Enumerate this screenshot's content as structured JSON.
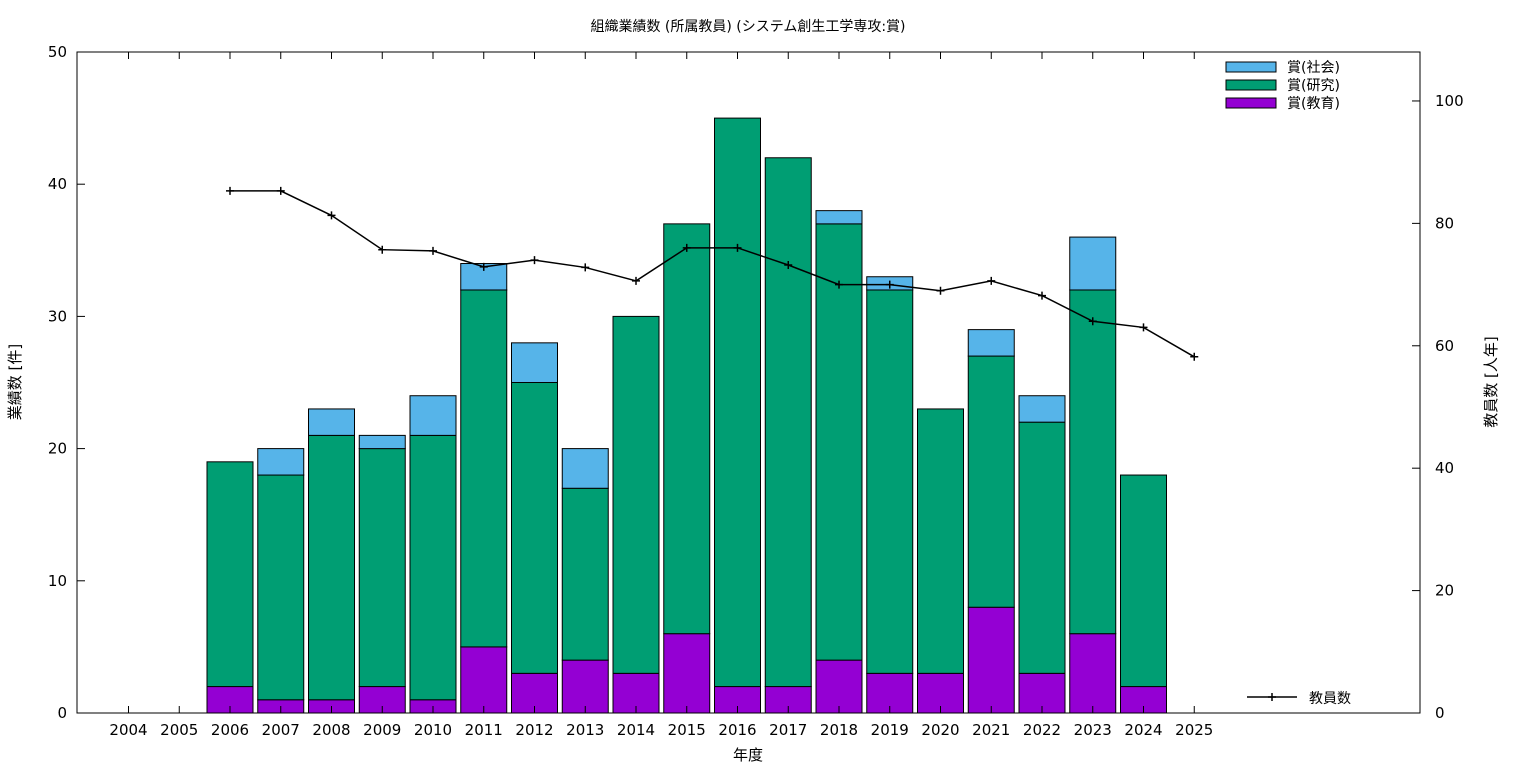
{
  "chart_data": {
    "type": "bar",
    "stacked": true,
    "title": "組織業績数 (所属教員) (システム創生工学専攻:賞)",
    "xlabel": "年度",
    "ylabel": "業績数 [件]",
    "y2label": "教員数 [人年]",
    "ylim": [
      0,
      50
    ],
    "y2lim": [
      0,
      108
    ],
    "yticks": [
      0,
      10,
      20,
      30,
      40,
      50
    ],
    "y2ticks": [
      0,
      20,
      40,
      60,
      80,
      100
    ],
    "grid": false,
    "legend_position": "top-right",
    "categories": [
      "2004",
      "2005",
      "2006",
      "2007",
      "2008",
      "2009",
      "2010",
      "2011",
      "2012",
      "2013",
      "2014",
      "2015",
      "2016",
      "2017",
      "2018",
      "2019",
      "2020",
      "2021",
      "2022",
      "2023",
      "2024",
      "2025"
    ],
    "series": [
      {
        "name": "賞(教育)",
        "color": "#9400d3",
        "values": [
          0,
          0,
          2,
          1,
          1,
          2,
          1,
          5,
          3,
          4,
          3,
          6,
          2,
          2,
          4,
          3,
          3,
          8,
          3,
          6,
          2,
          0
        ]
      },
      {
        "name": "賞(研究)",
        "color": "#009e73",
        "values": [
          0,
          0,
          17,
          17,
          20,
          18,
          20,
          27,
          22,
          13,
          27,
          31,
          43,
          40,
          33,
          29,
          20,
          19,
          19,
          26,
          16,
          0
        ]
      },
      {
        "name": "賞(社会)",
        "color": "#56b4e9",
        "values": [
          0,
          0,
          0,
          2,
          2,
          1,
          3,
          2,
          3,
          3,
          0,
          0,
          0,
          0,
          1,
          1,
          0,
          2,
          2,
          4,
          0,
          0
        ]
      }
    ],
    "line_series": {
      "name": "教員数",
      "axis": "y2",
      "color": "#000000",
      "x": [
        "2006",
        "2007",
        "2008",
        "2009",
        "2010",
        "2011",
        "2012",
        "2013",
        "2014",
        "2015",
        "2016",
        "2017",
        "2018",
        "2019",
        "2020",
        "2021",
        "2022",
        "2023",
        "2024",
        "2025"
      ],
      "values": [
        85.3,
        85.3,
        81.3,
        75.7,
        75.5,
        72.9,
        74.0,
        72.8,
        70.6,
        76.0,
        76.0,
        73.2,
        70.0,
        70.0,
        69.0,
        70.6,
        68.2,
        64.0,
        63.0,
        58.2
      ]
    }
  }
}
